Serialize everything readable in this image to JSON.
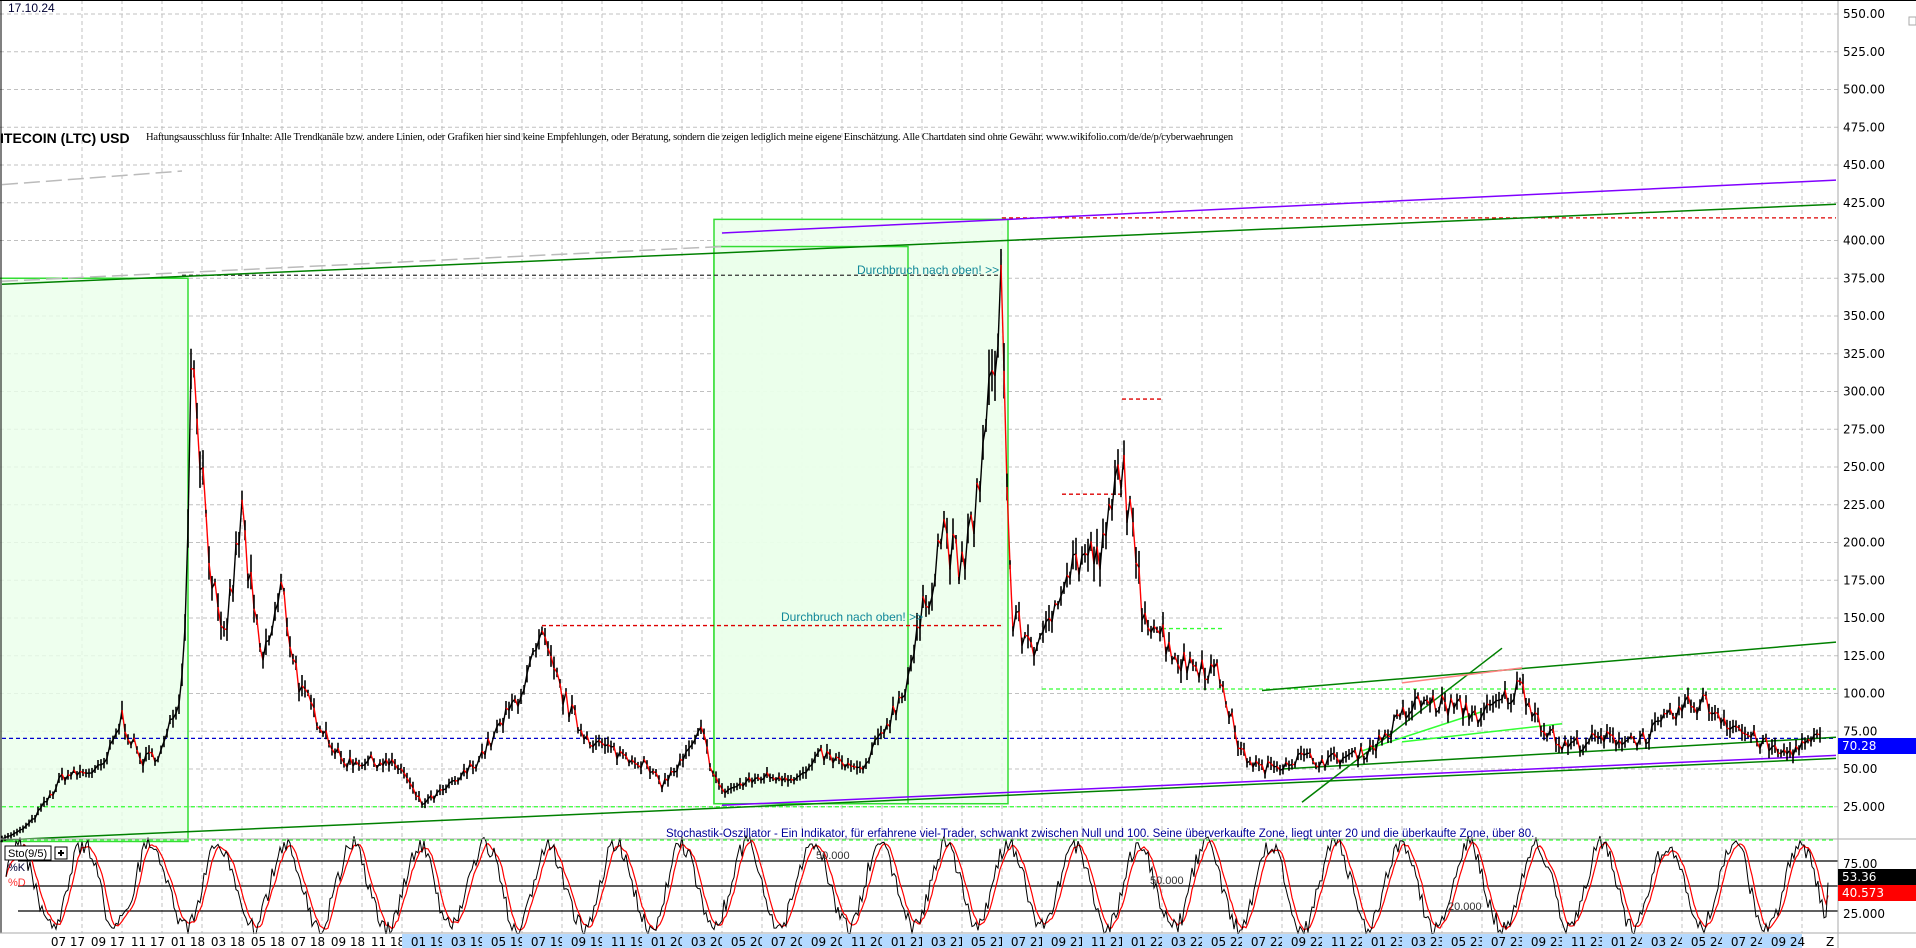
{
  "header": {
    "date": "17.10.24",
    "title": "ITECOIN (LTC) USD",
    "disclaimer": "Haftungsausschluss für Inhalte: Alle Trendkanäle bzw. andere Linien, oder Grafiken hier sind keine Empfehlungen, oder Beratung, sondern die zeigen lediglich meine eigene Einschätzung. Alle Chartdaten sind ohne Gewähr. www.wikifolio.com/de/de/p/cyberwaehrungen"
  },
  "chart_data": [
    {
      "type": "line",
      "title": "ITECOIN (LTC) USD",
      "y_ticks": [
        "25.000",
        "50.00",
        "75.00",
        "100.00",
        "125.00",
        "150.00",
        "175.00",
        "200.00",
        "225.00",
        "250.00",
        "275.00",
        "300.00",
        "325.00",
        "350.00",
        "375.00",
        "400.00",
        "425.00",
        "450.00",
        "475.00",
        "500.00",
        "525.00",
        "550.00"
      ],
      "ylim": [
        0,
        550
      ],
      "x_ticks": [
        "07 17",
        "09 17",
        "11 17",
        "01 18",
        "03 18",
        "05 18",
        "07 18",
        "09 18",
        "11 18",
        "01 19",
        "03 19",
        "05 19",
        "07 19",
        "09 19",
        "11 19",
        "01 20",
        "03 20",
        "05 20",
        "07 20",
        "09 20",
        "11 20",
        "01 21",
        "03 21",
        "05 21",
        "07 21",
        "09 21",
        "11 21",
        "01 22",
        "03 22",
        "05 22",
        "07 22",
        "09 22",
        "11 22",
        "01 23",
        "03 23",
        "05 23",
        "07 23",
        "09 23",
        "11 23",
        "01 24",
        "03 24",
        "05 24",
        "07 24",
        "09 24",
        "Z"
      ],
      "grid": true,
      "last_price": "70.28",
      "series": [
        {
          "x": [
            "2017-03",
            "2017-05",
            "2017-06",
            "2017-08",
            "2017-09",
            "2017-10",
            "2017-11",
            "2017-12",
            "2017-12b",
            "2018-01",
            "2018-02",
            "2018-03",
            "2018-04",
            "2018-05",
            "2018-06",
            "2018-07",
            "2018-08",
            "2018-10",
            "2018-11",
            "2018-12",
            "2019-02",
            "2019-04",
            "2019-06",
            "2019-07",
            "2019-08",
            "2019-09",
            "2019-11",
            "2019-12",
            "2020-02",
            "2020-03",
            "2020-05",
            "2020-07",
            "2020-08",
            "2020-10",
            "2020-11",
            "2020-12",
            "2021-01",
            "2021-02",
            "2021-03",
            "2021-04",
            "2021-05",
            "2021-05b",
            "2021-06",
            "2021-07",
            "2021-08",
            "2021-09",
            "2021-10",
            "2021-11",
            "2021-12",
            "2022-01",
            "2022-02",
            "2022-03",
            "2022-04",
            "2022-05",
            "2022-06",
            "2022-08",
            "2022-09",
            "2022-11",
            "2022-12",
            "2023-01",
            "2023-02",
            "2023-04",
            "2023-05",
            "2023-06",
            "2023-07",
            "2023-08",
            "2023-09",
            "2023-11",
            "2024-01",
            "2024-03",
            "2024-04",
            "2024-05",
            "2024-06",
            "2024-08",
            "2024-09",
            "2024-10"
          ],
          "y": [
            4,
            25,
            45,
            50,
            85,
            55,
            62,
            110,
            350,
            250,
            130,
            220,
            120,
            170,
            100,
            80,
            55,
            55,
            50,
            27,
            45,
            80,
            135,
            100,
            75,
            65,
            55,
            40,
            75,
            35,
            45,
            45,
            60,
            48,
            75,
            100,
            150,
            210,
            180,
            250,
            380,
            150,
            140,
            130,
            180,
            190,
            190,
            260,
            160,
            140,
            120,
            120,
            110,
            60,
            50,
            58,
            55,
            60,
            70,
            85,
            95,
            90,
            85,
            95,
            105,
            80,
            65,
            70,
            70,
            90,
            95,
            85,
            75,
            60,
            65,
            70.28
          ]
        }
      ],
      "annotations": {
        "texts": [
          "Durchbruch nach oben! >>",
          "Durchbruch nach oben! >>"
        ],
        "trendlines": [
          {
            "from": [
              "2017-03",
              371
            ],
            "to": [
              "2024-10",
              424
            ],
            "color": "#008000"
          },
          {
            "from": [
              "2020-03",
              405
            ],
            "to": [
              "2024-10",
              440
            ],
            "color": "#8000ff"
          },
          {
            "from": [
              "2017-03",
              437
            ],
            "to": [
              "2017-12",
              446
            ],
            "color": "#bbbbbb",
            "dash": true
          },
          {
            "from": [
              "2017-03",
              373
            ],
            "to": [
              "2020-03",
              396
            ],
            "color": "#bbbbbb",
            "dash": true
          },
          {
            "from": [
              "2017-03",
              3
            ],
            "to": [
              "2024-10",
              57
            ],
            "color": "#008000"
          },
          {
            "from": [
              "2020-03",
              26
            ],
            "to": [
              "2024-10",
              59
            ],
            "color": "#8000ff"
          },
          {
            "from": [
              "2022-06",
              102
            ],
            "to": [
              "2024-10",
              134
            ],
            "color": "#008000"
          },
          {
            "from": [
              "2022-08",
              28
            ],
            "to": [
              "2023-06",
              130
            ],
            "color": "#008000"
          },
          {
            "from": [
              "2022-07",
              50
            ],
            "to": [
              "2024-10",
              71
            ],
            "color": "#008000"
          },
          {
            "from": [
              "2023-01",
              68
            ],
            "to": [
              "2023-09",
              80
            ],
            "color": "#33ff33"
          },
          {
            "from": [
              "2022-11",
              62
            ],
            "to": [
              "2023-05",
              88
            ],
            "color": "#33ff33"
          },
          {
            "from": [
              "2023-01",
              107
            ],
            "to": [
              "2023-07",
              117
            ],
            "color": "#ff8080"
          }
        ],
        "hlines": [
          {
            "price": 415,
            "from": "2021-05",
            "to": "2024-10",
            "color": "#dd0000"
          },
          {
            "price": 377,
            "from": "2017-12",
            "to": "2021-05",
            "color": "#333333"
          },
          {
            "price": 145,
            "from": "2019-06",
            "to": "2021-05",
            "color": "#dd0000"
          },
          {
            "price": 295,
            "from": "2021-11",
            "to": "2022-01",
            "color": "#dd0000"
          },
          {
            "price": 232,
            "from": "2021-08",
            "to": "2021-11",
            "color": "#dd0000"
          },
          {
            "price": 143,
            "from": "2022-01",
            "to": "2022-04",
            "color": "#33ff33"
          },
          {
            "price": 103,
            "from": "2021-07",
            "to": "2024-10",
            "color": "#33ff33"
          },
          {
            "price": 25,
            "from": "2017-03",
            "to": "2024-10",
            "color": "#33ff33"
          },
          {
            "price": 3,
            "from": "2017-03",
            "to": "2024-10",
            "color": "#33ff33"
          },
          {
            "price": 70.28,
            "from": "2017-03",
            "to": "2024-10",
            "color": "#0000cc"
          }
        ],
        "boxes": [
          {
            "from": "2017-03",
            "to": "2017-12",
            "low": 2,
            "high": 375
          },
          {
            "from": "2020-03",
            "to": "2021-05",
            "low": 27,
            "high": 414
          },
          {
            "from": "2020-03",
            "to": "2020-12",
            "low": 27,
            "high": 396
          }
        ]
      }
    },
    {
      "type": "line",
      "title": "Sto(9/5)",
      "series": [
        {
          "name": "%K",
          "last": "53.36",
          "color": "#000000"
        },
        {
          "name": "%D",
          "last": "40.573",
          "color": "#ff0000"
        }
      ],
      "y_ticks": [
        "25.000",
        "75.00"
      ],
      "levels": [
        25,
        50,
        75
      ],
      "description": "Stochastik-Oszillator - Ein Indikator, für erfahrene viel-Trader, schwankt zwischen Null und 100. Seine überverkaufte Zone, liegt unter 20 und die überkaufte Zone, über 80.",
      "labels": [
        "50.000",
        "50.000",
        "20.000"
      ]
    }
  ],
  "colors": {
    "up": "#000000",
    "down": "#ff0000",
    "box_fill": "#eaffea",
    "box_stroke": "#33dd33",
    "last_price_bg": "#0000ff",
    "k_bg": "#000000",
    "d_bg": "#ff0000",
    "date_highlight": "#b3d9ff"
  },
  "panel": {
    "sto_label": "Sto(9/5)",
    "add_icon": "plus-icon",
    "k_label": "%K",
    "d_label": "%D"
  }
}
